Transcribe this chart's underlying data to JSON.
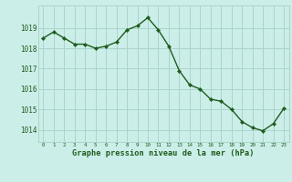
{
  "x": [
    0,
    1,
    2,
    3,
    4,
    5,
    6,
    7,
    8,
    9,
    10,
    11,
    12,
    13,
    14,
    15,
    16,
    17,
    18,
    19,
    20,
    21,
    22,
    23
  ],
  "y": [
    1018.5,
    1018.8,
    1018.5,
    1018.2,
    1018.2,
    1018.0,
    1018.1,
    1018.3,
    1018.9,
    1019.1,
    1019.5,
    1018.9,
    1018.1,
    1016.9,
    1016.2,
    1016.0,
    1015.5,
    1015.4,
    1015.0,
    1014.4,
    1014.1,
    1013.95,
    1014.3,
    1015.05
  ],
  "line_color": "#1e5c1e",
  "marker_color": "#1e5c1e",
  "bg_color": "#cceee8",
  "grid_color": "#aad4cc",
  "xlabel": "Graphe pression niveau de la mer (hPa)",
  "xlabel_color": "#1e5c1e",
  "tick_color": "#1e5c1e",
  "ylim_min": 1013.4,
  "ylim_max": 1020.1,
  "yticks": [
    1014,
    1015,
    1016,
    1017,
    1018,
    1019
  ],
  "xtick_labels": [
    "0",
    "1",
    "2",
    "3",
    "4",
    "5",
    "6",
    "7",
    "8",
    "9",
    "10",
    "11",
    "12",
    "13",
    "14",
    "15",
    "16",
    "17",
    "18",
    "19",
    "20",
    "21",
    "22",
    "23"
  ],
  "font_family": "monospace",
  "ytick_fontsize": 5.5,
  "xtick_fontsize": 4.2,
  "xlabel_fontsize": 6.2,
  "linewidth": 1.0,
  "markersize": 2.2
}
